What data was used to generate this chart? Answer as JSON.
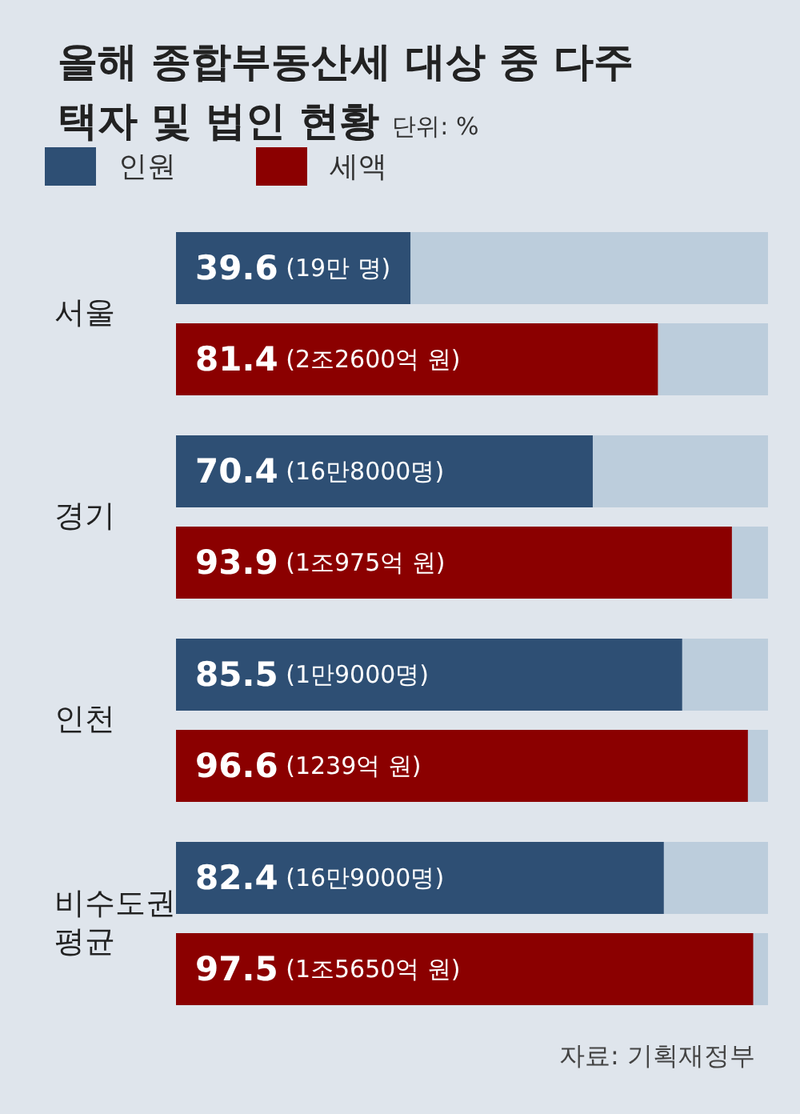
{
  "chart_data": {
    "type": "bar",
    "orientation": "horizontal",
    "title": "올해 종합부동산세 대상 중 다주택자 및 법인 현황",
    "subtitle": "단위: %",
    "categories": [
      "서울",
      "경기",
      "인천",
      "비수도권 평균"
    ],
    "series": [
      {
        "name": "인원",
        "color": "#2e4f74",
        "values": [
          39.6,
          70.4,
          85.5,
          82.4
        ],
        "value_labels": [
          "39.6 (19만 명)",
          "70.4 (16만8000명)",
          "85.5 (1만9000명)",
          "82.4 (16만9000명)"
        ]
      },
      {
        "name": "세액",
        "color": "#8b0000",
        "values": [
          81.4,
          93.9,
          96.6,
          97.5
        ],
        "value_labels": [
          "81.4 (2조2600억 원)",
          "93.9 (1조975억 원)",
          "96.6 (1239억 원)",
          "97.5 (1조5650억 원)"
        ]
      }
    ],
    "xlim": [
      0,
      100
    ],
    "tick_labels": "y",
    "legend": "top left",
    "grid": false,
    "annotations": [
      "자료: 기획재정부"
    ]
  }
}
